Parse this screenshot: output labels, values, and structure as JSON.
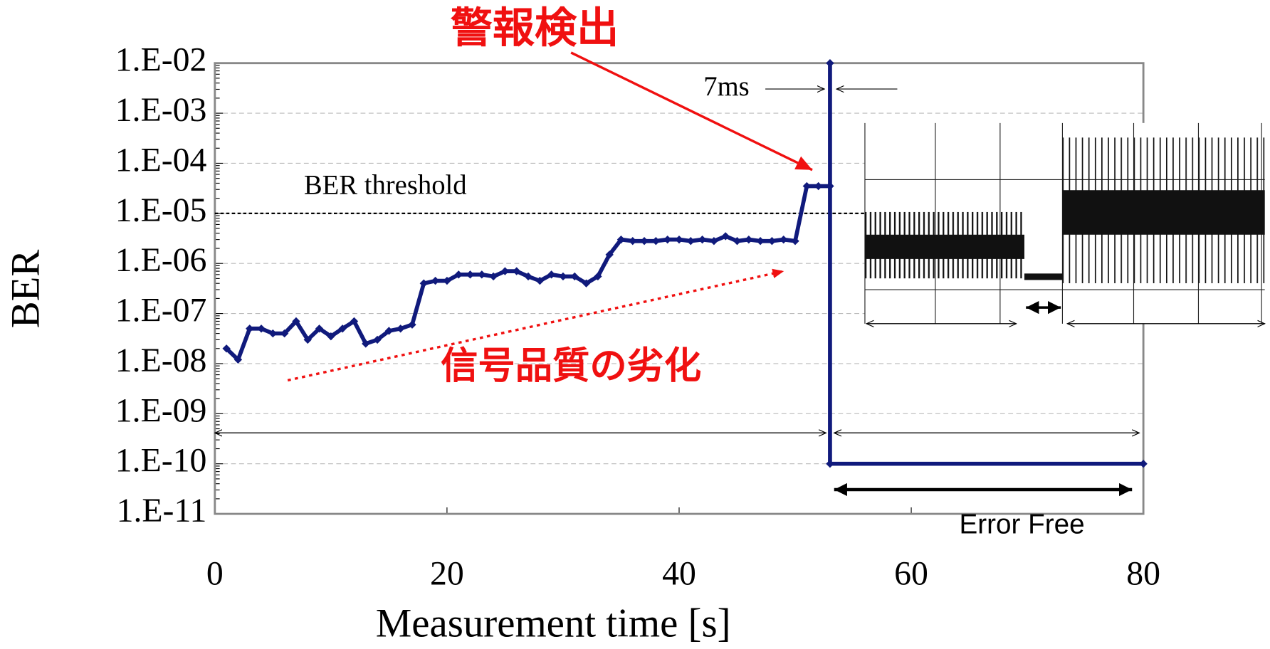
{
  "chart_data": {
    "type": "line",
    "x": [
      1,
      2,
      3,
      4,
      5,
      6,
      7,
      8,
      9,
      10,
      11,
      12,
      13,
      14,
      15,
      16,
      17,
      18,
      19,
      20,
      21,
      22,
      23,
      24,
      25,
      26,
      27,
      28,
      29,
      30,
      31,
      32,
      33,
      34,
      35,
      36,
      37,
      38,
      39,
      40,
      41,
      42,
      43,
      44,
      45,
      46,
      47,
      48,
      49,
      50,
      51,
      52,
      53,
      53,
      53,
      80
    ],
    "values": [
      2e-08,
      1.2e-08,
      5e-08,
      5e-08,
      4e-08,
      4e-08,
      7e-08,
      3e-08,
      5e-08,
      3.5e-08,
      5e-08,
      7e-08,
      2.5e-08,
      3e-08,
      4.5e-08,
      5e-08,
      6e-08,
      4e-07,
      4.5e-07,
      4.5e-07,
      6e-07,
      6e-07,
      6e-07,
      5.5e-07,
      7e-07,
      7e-07,
      5.5e-07,
      4.5e-07,
      6e-07,
      5.5e-07,
      5.5e-07,
      4e-07,
      5.5e-07,
      1.5e-06,
      3e-06,
      2.8e-06,
      2.8e-06,
      2.8e-06,
      3e-06,
      3e-06,
      2.8e-06,
      3e-06,
      2.8e-06,
      3.5e-06,
      2.8e-06,
      3e-06,
      2.8e-06,
      2.8e-06,
      3e-06,
      2.8e-06,
      3.5e-05,
      3.5e-05,
      3.5e-05,
      0.01,
      1e-10,
      1e-10
    ],
    "color": "#101a7c",
    "log_y": true,
    "xlabel": "Measurement time [s]",
    "ylabel": "BER",
    "xlim": [
      0,
      80
    ],
    "ylim": [
      1e-11,
      0.01
    ],
    "xticks": [
      0,
      20,
      40,
      60,
      80
    ],
    "yticks": [
      {
        "value": 0.01,
        "label": "1.E-02"
      },
      {
        "value": 0.001,
        "label": "1.E-03"
      },
      {
        "value": 0.0001,
        "label": "1.E-04"
      },
      {
        "value": 1e-05,
        "label": "1.E-05"
      },
      {
        "value": 1e-06,
        "label": "1.E-06"
      },
      {
        "value": 1e-07,
        "label": "1.E-07"
      },
      {
        "value": 1e-08,
        "label": "1.E-08"
      },
      {
        "value": 1e-09,
        "label": "1.E-09"
      },
      {
        "value": 1e-10,
        "label": "1.E-10"
      },
      {
        "value": 1e-11,
        "label": "1.E-11"
      }
    ],
    "grid": true,
    "threshold": {
      "value": 1e-05,
      "label": "BER threshold"
    },
    "annotations": {
      "alarm": "警報検出",
      "degradation": "信号品質の劣化",
      "switch_time": "7ms",
      "error_free": "Error Free"
    }
  }
}
